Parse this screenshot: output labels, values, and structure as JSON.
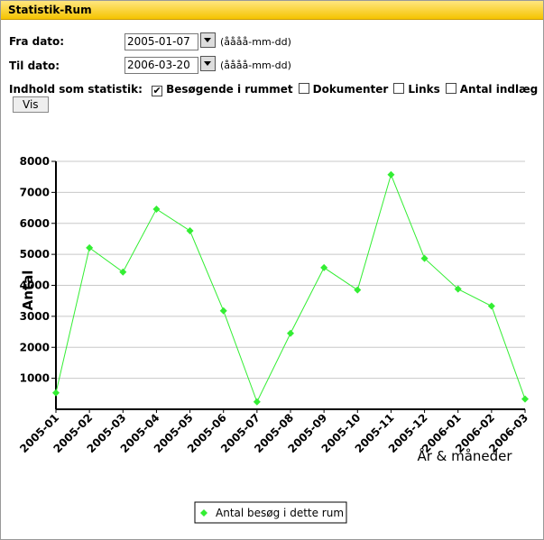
{
  "header": {
    "title": "Statistik-Rum"
  },
  "form": {
    "from_label": "Fra dato:",
    "from_value": "2005-01-07",
    "from_hint": "(åååå-mm-dd)",
    "to_label": "Til dato:",
    "to_value": "2006-03-20",
    "to_hint": "(åååå-mm-dd)",
    "content_label": "Indhold som statistik:",
    "options": [
      {
        "label": "Besøgende i rummet",
        "checked": true
      },
      {
        "label": "Dokumenter",
        "checked": false
      },
      {
        "label": "Links",
        "checked": false
      },
      {
        "label": "Antal indlæg",
        "checked": false
      }
    ],
    "button": "Vis"
  },
  "chart_data": {
    "type": "line",
    "y_label": "Antal",
    "x_label": "År & måneder",
    "categories": [
      "2005-01",
      "2005-02",
      "2005-03",
      "2005-04",
      "2005-05",
      "2005-06",
      "2005-07",
      "2005-08",
      "2005-09",
      "2005-10",
      "2005-11",
      "2005-12",
      "2006-01",
      "2006-02",
      "2006-03"
    ],
    "series": [
      {
        "name": "Antal besøg i dette rum",
        "color": "#33ee33",
        "values": [
          530,
          5210,
          4430,
          6460,
          5760,
          3180,
          240,
          2450,
          4570,
          3850,
          7570,
          4870,
          3880,
          3330,
          330
        ]
      }
    ],
    "ylim": [
      0,
      8000
    ],
    "yticks": [
      1000,
      2000,
      3000,
      4000,
      5000,
      6000,
      7000,
      8000
    ],
    "grid": true
  }
}
